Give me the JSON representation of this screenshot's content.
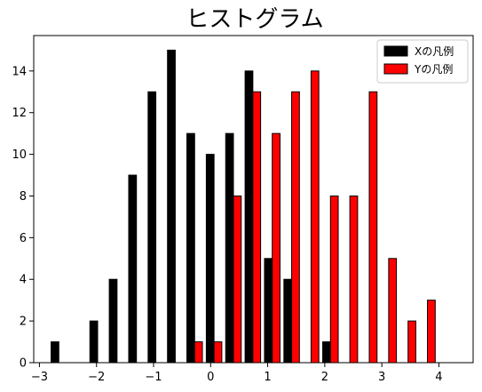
{
  "chart_data": {
    "type": "bar",
    "title": "ヒストグラム",
    "xlabel": "",
    "ylabel": "",
    "xlim": [
      -3.1,
      4.6
    ],
    "ylim": [
      0,
      15.7
    ],
    "x_ticks": [
      -3,
      -2,
      -1,
      0,
      1,
      2,
      3,
      4
    ],
    "y_ticks": [
      0,
      2,
      4,
      6,
      8,
      10,
      12,
      14
    ],
    "grid": false,
    "legend_position": "top-right",
    "bin_starts": [
      -2.83,
      -2.49,
      -2.15,
      -1.81,
      -1.47,
      -1.13,
      -0.79,
      -0.45,
      -0.11,
      0.23,
      0.57,
      0.91,
      1.25,
      1.59,
      1.93,
      2.27,
      2.61,
      2.95,
      3.29,
      3.63,
      3.97
    ],
    "bin_width": 0.34,
    "series": [
      {
        "name": "Xの凡例",
        "color": "#000000",
        "values": [
          1,
          0,
          2,
          4,
          9,
          13,
          15,
          11,
          10,
          11,
          14,
          5,
          4,
          0,
          1,
          0,
          0,
          0,
          0,
          0,
          0
        ]
      },
      {
        "name": "Yの凡例",
        "color": "#ff0000",
        "values": [
          0,
          0,
          0,
          0,
          0,
          0,
          0,
          1,
          1,
          8,
          13,
          11,
          13,
          14,
          8,
          8,
          13,
          5,
          2,
          3,
          0
        ]
      }
    ]
  }
}
